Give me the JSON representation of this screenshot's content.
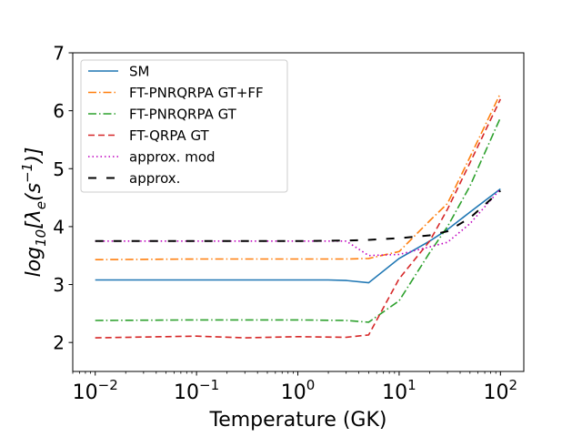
{
  "chart_data": {
    "type": "line",
    "title": "",
    "xlabel": "Temperature (GK)",
    "ylabel": "log10[λe(s−1)]",
    "xscale": "log",
    "xlim": [
      0.006,
      170
    ],
    "ylim": [
      1.5,
      7
    ],
    "xticks": [
      {
        "value": 0.01,
        "base": "10",
        "exp": "−2"
      },
      {
        "value": 0.1,
        "base": "10",
        "exp": "−1"
      },
      {
        "value": 1,
        "base": "10",
        "exp": "0"
      },
      {
        "value": 10,
        "base": "10",
        "exp": "1"
      },
      {
        "value": 100,
        "base": "10",
        "exp": "2"
      }
    ],
    "yticks": [
      {
        "value": 2,
        "label": "2"
      },
      {
        "value": 3,
        "label": "3"
      },
      {
        "value": 4,
        "label": "4"
      },
      {
        "value": 5,
        "label": "5"
      },
      {
        "value": 6,
        "label": "6"
      },
      {
        "value": 7,
        "label": "7"
      }
    ],
    "legend_position": "top-left",
    "series": [
      {
        "name": "SM",
        "color": "#1f77b4",
        "dash": "solid",
        "x": [
          0.01,
          0.1,
          0.5,
          1,
          2,
          3,
          5,
          10,
          20,
          30,
          50,
          100
        ],
        "y": [
          3.08,
          3.08,
          3.08,
          3.08,
          3.08,
          3.07,
          3.03,
          3.45,
          3.75,
          3.95,
          4.25,
          4.65
        ]
      },
      {
        "name": "FT-PNRQRPA GT+FF",
        "color": "#ff7f0e",
        "dash": "dashdot",
        "x": [
          0.01,
          0.1,
          0.3,
          1,
          3,
          5,
          10,
          20,
          30,
          50,
          100
        ],
        "y": [
          3.43,
          3.44,
          3.44,
          3.44,
          3.44,
          3.45,
          3.57,
          4.1,
          4.4,
          5.2,
          6.3
        ]
      },
      {
        "name": "FT-PNRQRPA GT",
        "color": "#2ca02c",
        "dash": "dashdot",
        "x": [
          0.01,
          0.1,
          0.3,
          1,
          3,
          5,
          10,
          20,
          30,
          50,
          100
        ],
        "y": [
          2.38,
          2.39,
          2.39,
          2.39,
          2.38,
          2.35,
          2.72,
          3.55,
          4.0,
          4.7,
          5.88
        ]
      },
      {
        "name": "FT-QRPA GT",
        "color": "#d62728",
        "dash": "dashed",
        "x": [
          0.01,
          0.1,
          0.3,
          1,
          3,
          5,
          10,
          20,
          30,
          50,
          100
        ],
        "y": [
          2.08,
          2.11,
          2.08,
          2.1,
          2.09,
          2.13,
          3.1,
          3.75,
          4.3,
          5.1,
          6.2
        ]
      },
      {
        "name": "approx. mod",
        "color": "#bf00bf",
        "dash": "dotted",
        "x": [
          0.01,
          0.1,
          1,
          3,
          5,
          10,
          20,
          30,
          50,
          100
        ],
        "y": [
          3.75,
          3.75,
          3.75,
          3.75,
          3.5,
          3.52,
          3.65,
          3.73,
          4.05,
          4.65
        ]
      },
      {
        "name": "approx.",
        "color": "#000000",
        "dash": "loosedash",
        "x": [
          0.01,
          0.1,
          1,
          3,
          5,
          10,
          20,
          30,
          50,
          100
        ],
        "y": [
          3.75,
          3.75,
          3.75,
          3.76,
          3.77,
          3.8,
          3.85,
          3.92,
          4.15,
          4.62
        ]
      }
    ]
  }
}
